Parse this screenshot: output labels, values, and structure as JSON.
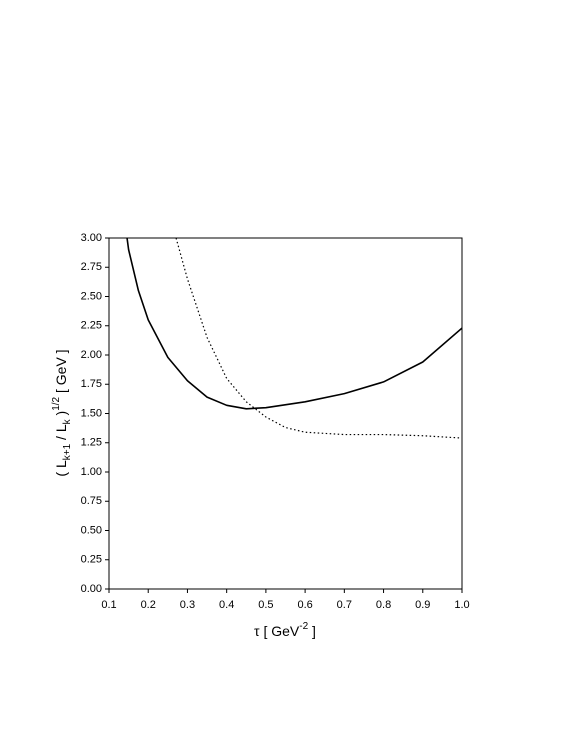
{
  "chart_data": {
    "type": "line",
    "xlabel": {
      "main": "τ  [ GeV",
      "sup": "-2",
      "end": " ]"
    },
    "ylabel": {
      "open": "( L",
      "sub1": "k+1",
      "mid": " / L",
      "sub2": "k",
      "close": " )",
      "sup": "1/2",
      "end": "  [ GeV ]"
    },
    "xlim": [
      0.1,
      1.0
    ],
    "ylim": [
      0,
      3
    ],
    "xticks": [
      0.1,
      0.2,
      0.3,
      0.4,
      0.5,
      0.6,
      0.7,
      0.8,
      0.9,
      {
        "value": 1,
        "label": "1.0"
      }
    ],
    "yticks": [
      {
        "value": 0,
        "label": "0.00"
      },
      {
        "value": 0.25,
        "label": "0.25"
      },
      {
        "value": 0.5,
        "label": "0.50"
      },
      {
        "value": 0.75,
        "label": "0.75"
      },
      {
        "value": 1,
        "label": "1.00"
      },
      {
        "value": 1.25,
        "label": "1.25"
      },
      {
        "value": 1.5,
        "label": "1.50"
      },
      {
        "value": 1.75,
        "label": "1.75"
      },
      {
        "value": 2,
        "label": "2.00"
      },
      {
        "value": 2.25,
        "label": "2.25"
      },
      {
        "value": 2.5,
        "label": "2.50"
      },
      {
        "value": 2.75,
        "label": "2.75"
      },
      {
        "value": 3,
        "label": "3.00"
      }
    ],
    "series": [
      {
        "color": "#000000",
        "style": "solid",
        "x": [
          0.146,
          0.15,
          0.175,
          0.2,
          0.25,
          0.3,
          0.35,
          0.4,
          0.45,
          0.5,
          0.6,
          0.7,
          0.8,
          0.9,
          1.0
        ],
        "values": [
          3.0,
          2.9,
          2.55,
          2.3,
          1.98,
          1.78,
          1.64,
          1.57,
          1.54,
          1.55,
          1.6,
          1.67,
          1.77,
          1.94,
          2.23
        ]
      },
      {
        "color": "#000000",
        "style": "dotted",
        "x": [
          0.271,
          0.3,
          0.35,
          0.4,
          0.45,
          0.5,
          0.55,
          0.6,
          0.7,
          0.8,
          0.9,
          1.0
        ],
        "values": [
          3.0,
          2.65,
          2.15,
          1.8,
          1.6,
          1.47,
          1.38,
          1.34,
          1.32,
          1.32,
          1.31,
          1.29
        ]
      }
    ]
  }
}
